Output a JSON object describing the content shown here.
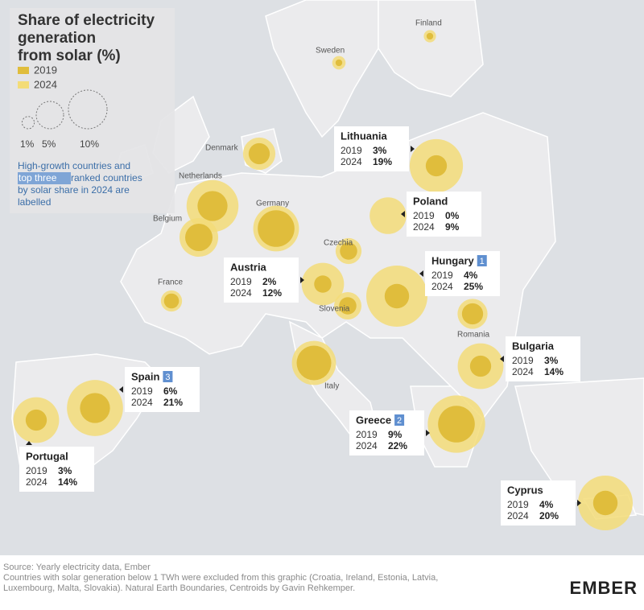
{
  "title": [
    "Share of electricity",
    "generation",
    "from solar (%)"
  ],
  "legend": {
    "years": [
      "2019",
      "2024"
    ],
    "sizes": [
      {
        "value": 1,
        "label": "1%"
      },
      {
        "value": 5,
        "label": "5%"
      },
      {
        "value": 10,
        "label": "10%"
      }
    ],
    "note": [
      "High-growth countries and ",
      "top three",
      " ranked countries",
      "by solar share in 2024 are",
      "labelled"
    ]
  },
  "countries": [
    {
      "name": "Finland",
      "values": [
        0.3,
        1
      ]
    },
    {
      "name": "Sweden",
      "values": [
        0.3,
        1.2
      ]
    },
    {
      "name": "Denmark",
      "values": [
        3,
        7
      ]
    },
    {
      "name": "Netherlands",
      "values": [
        6,
        18
      ]
    },
    {
      "name": "Belgium",
      "values": [
        5,
        10
      ]
    },
    {
      "name": "Germany",
      "values": [
        9,
        14
      ]
    },
    {
      "name": "Czechia",
      "values": [
        2,
        4.5
      ]
    },
    {
      "name": "France",
      "values": [
        1.5,
        3
      ]
    },
    {
      "name": "Slovenia",
      "values": [
        2,
        5
      ]
    },
    {
      "name": "Romania",
      "values": [
        3,
        6
      ]
    },
    {
      "name": "Italy",
      "values": [
        8,
        13
      ]
    },
    {
      "name": "Lithuania",
      "years": [
        "2019",
        "2024"
      ],
      "values": [
        3,
        19
      ],
      "value_labels": [
        "3%",
        "19%"
      ]
    },
    {
      "name": "Poland",
      "years": [
        "2019",
        "2024"
      ],
      "values": [
        0,
        9
      ],
      "value_labels": [
        "0%",
        "9%"
      ]
    },
    {
      "name": "Hungary",
      "rank": 1,
      "years": [
        "2019",
        "2024"
      ],
      "values": [
        4,
        25
      ],
      "value_labels": [
        "4%",
        "25%"
      ]
    },
    {
      "name": "Austria",
      "years": [
        "2019",
        "2024"
      ],
      "values": [
        2,
        12
      ],
      "value_labels": [
        "2%",
        "12%"
      ]
    },
    {
      "name": "Bulgaria",
      "years": [
        "2019",
        "2024"
      ],
      "values": [
        3,
        14
      ],
      "value_labels": [
        "3%",
        "14%"
      ]
    },
    {
      "name": "Spain",
      "rank": 3,
      "years": [
        "2019",
        "2024"
      ],
      "values": [
        6,
        21
      ],
      "value_labels": [
        "6%",
        "21%"
      ]
    },
    {
      "name": "Portugal",
      "years": [
        "2019",
        "2024"
      ],
      "values": [
        3,
        14
      ],
      "value_labels": [
        "3%",
        "14%"
      ]
    },
    {
      "name": "Greece",
      "rank": 2,
      "years": [
        "2019",
        "2024"
      ],
      "values": [
        9,
        22
      ],
      "value_labels": [
        "9%",
        "22%"
      ]
    },
    {
      "name": "Cyprus",
      "years": [
        "2019",
        "2024"
      ],
      "values": [
        4,
        20
      ],
      "value_labels": [
        "4%",
        "20%"
      ]
    }
  ],
  "footer": {
    "lines": [
      "Source: Yearly electricity data, Ember",
      "Countries with solar generation below 1 TWh were excluded from this graphic (Croatia, Ireland, Estonia, Latvia,",
      "Luxembourg, Malta, Slovakia). Natural Earth Boundaries, Centroids by Gavin Rehkemper."
    ],
    "logo": "EMBER"
  }
}
